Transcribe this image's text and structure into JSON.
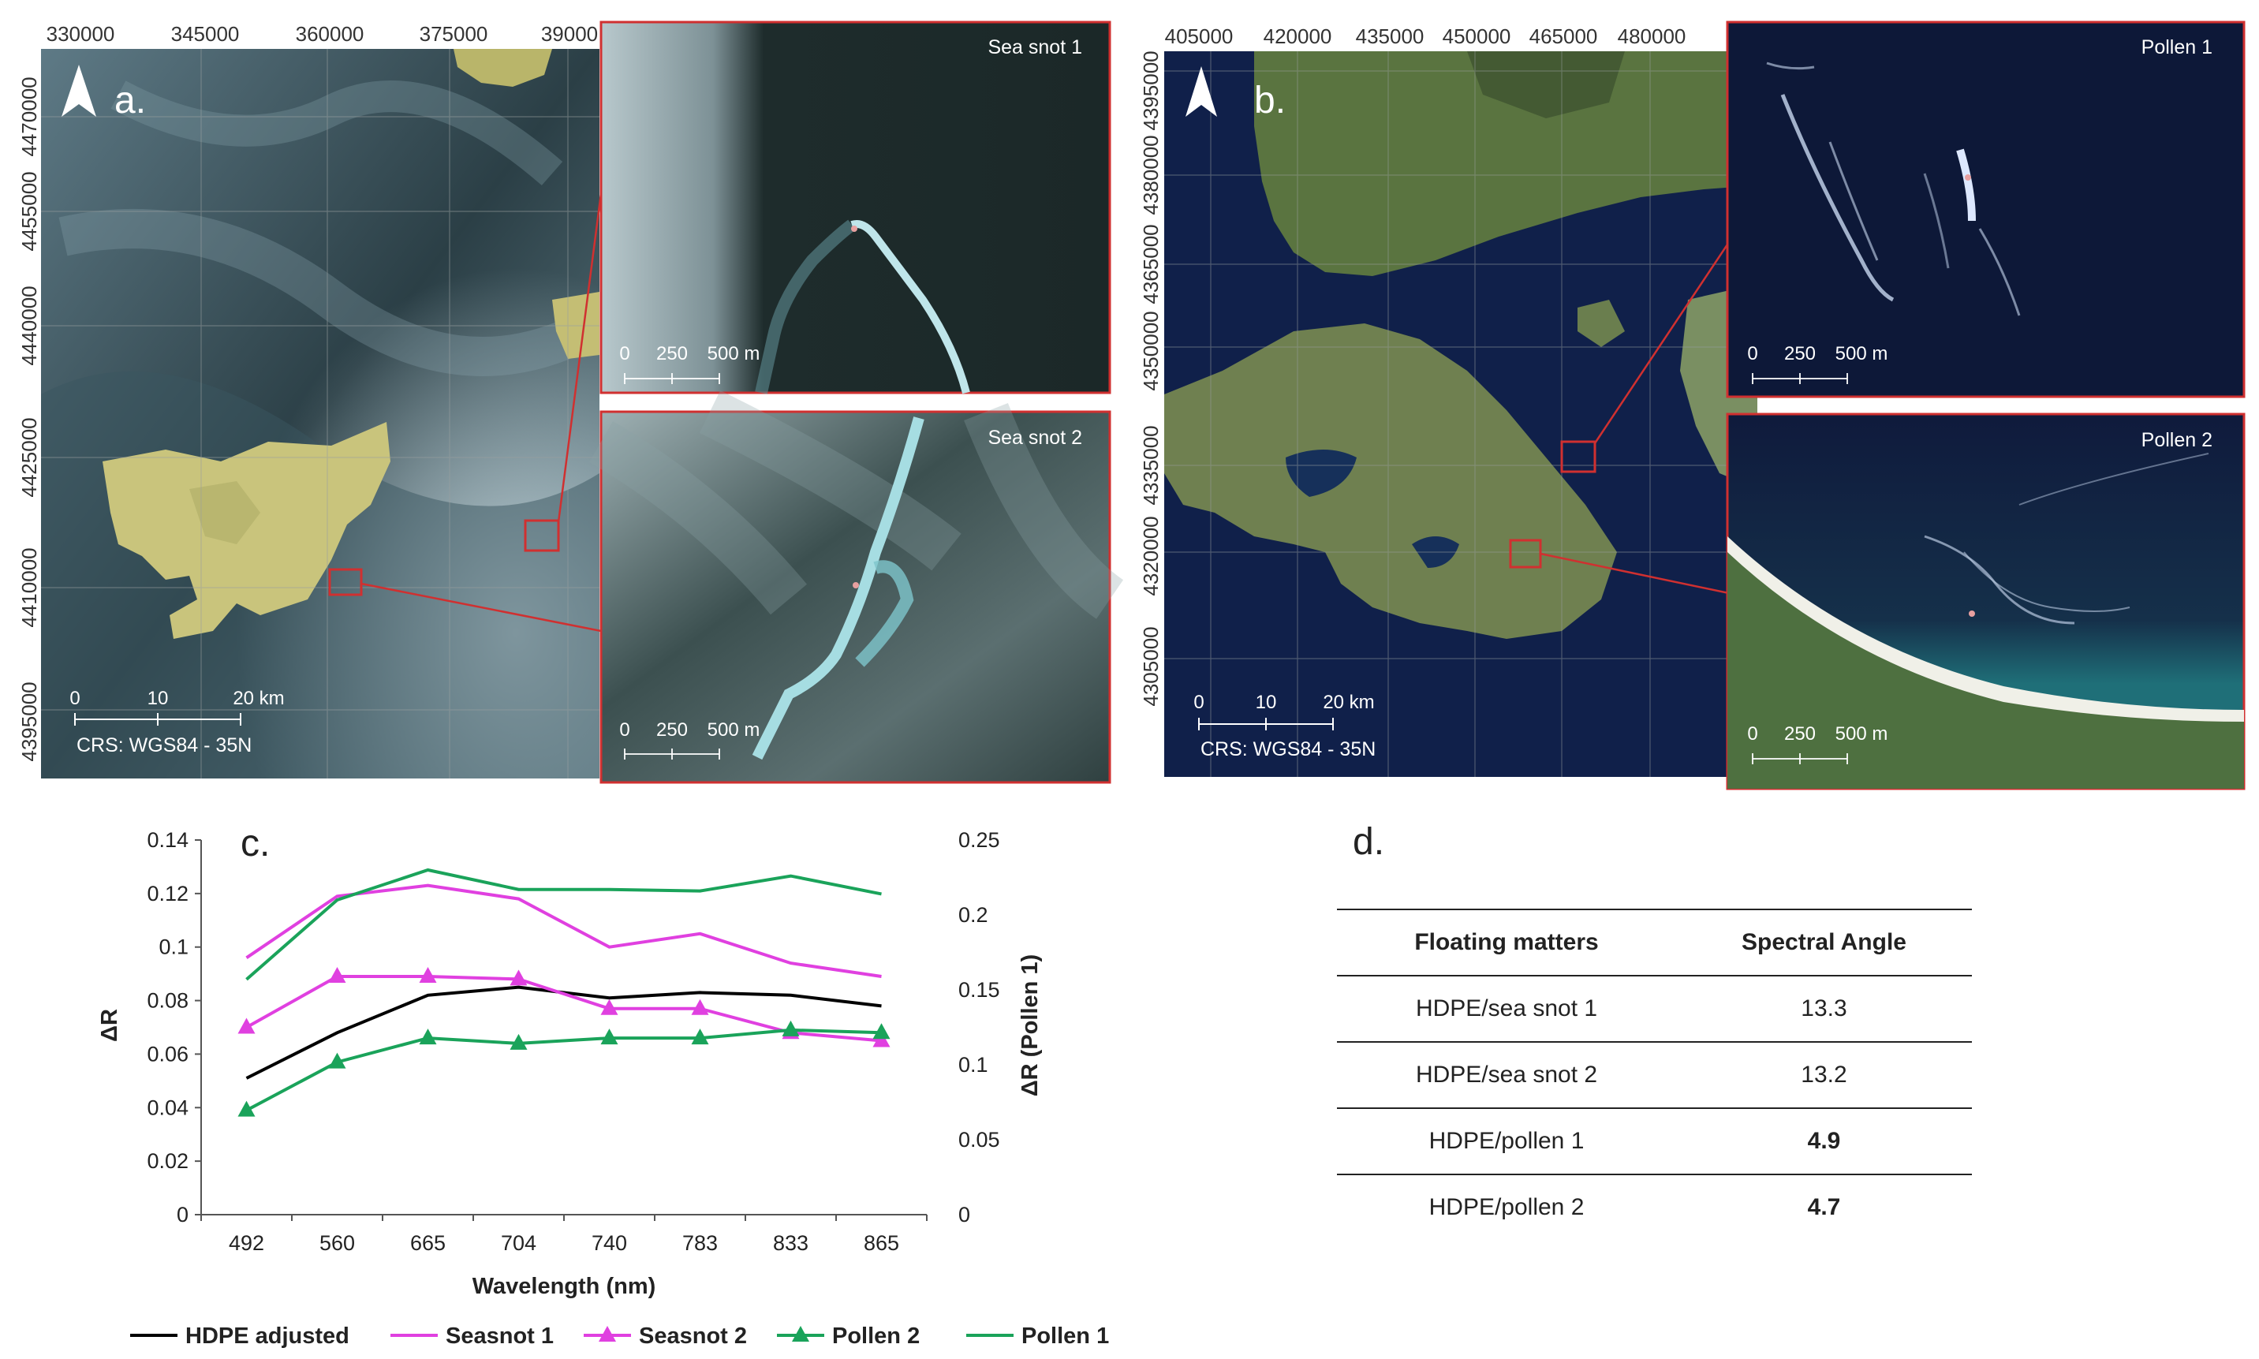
{
  "panel_a": {
    "letter": "a.",
    "x_ticks": [
      "330000",
      "345000",
      "360000",
      "375000",
      "39000"
    ],
    "y_ticks": [
      "4470000",
      "4455000",
      "4440000",
      "4425000",
      "4410000",
      "4395000"
    ],
    "scale_labels": [
      "0",
      "10",
      "20 km"
    ],
    "crs": "CRS: WGS84 - 35N",
    "insets": [
      {
        "title": "Sea snot 1",
        "scale_labels": [
          "0",
          "250",
          "500 m"
        ]
      },
      {
        "title": "Sea snot 2",
        "scale_labels": [
          "0",
          "250",
          "500 m"
        ]
      }
    ]
  },
  "panel_b": {
    "letter": "b.",
    "x_ticks": [
      "405000",
      "420000",
      "435000",
      "450000",
      "465000",
      "480000"
    ],
    "y_ticks": [
      "4395000",
      "4380000",
      "4365000",
      "4350000",
      "4335000",
      "4320000",
      "4305000"
    ],
    "scale_labels": [
      "0",
      "10",
      "20 km"
    ],
    "crs": "CRS: WGS84 - 35N",
    "insets": [
      {
        "title": "Pollen 1",
        "scale_labels": [
          "0",
          "250",
          "500 m"
        ]
      },
      {
        "title": "Pollen 2",
        "scale_labels": [
          "0",
          "250",
          "500 m"
        ]
      }
    ]
  },
  "panel_c": {
    "letter": "c.",
    "chart_data": {
      "type": "line",
      "x": [
        "492",
        "560",
        "665",
        "704",
        "740",
        "783",
        "833",
        "865"
      ],
      "xlabel": "Wavelength (nm)",
      "ylabel": "ΔR",
      "ylabel_right": "ΔR (Pollen 1)",
      "ylim": [
        0,
        0.14
      ],
      "y_ticks": [
        "0",
        "0.02",
        "0.04",
        "0.06",
        "0.08",
        "0.1",
        "0.12",
        "0.14"
      ],
      "ylim_right": [
        0,
        0.25
      ],
      "y_ticks_right": [
        "0",
        "0.05",
        "0.1",
        "0.15",
        "0.2",
        "0.25"
      ],
      "legend_placement": "bottom",
      "series": [
        {
          "name": "HDPE adjusted",
          "axis": "left",
          "color": "#000000",
          "marker": "none",
          "values": [
            0.051,
            0.068,
            0.082,
            0.085,
            0.081,
            0.083,
            0.082,
            0.078
          ]
        },
        {
          "name": "Seasnot 1",
          "axis": "left",
          "color": "#e040e0",
          "marker": "none",
          "values": [
            0.096,
            0.119,
            0.123,
            0.118,
            0.1,
            0.105,
            0.094,
            0.089
          ]
        },
        {
          "name": "Seasnot 2",
          "axis": "left",
          "color": "#e040e0",
          "marker": "triangle",
          "values": [
            0.07,
            0.089,
            0.089,
            0.088,
            0.077,
            0.077,
            0.068,
            0.065
          ]
        },
        {
          "name": "Pollen 2",
          "axis": "left",
          "color": "#1aa35a",
          "marker": "triangle",
          "values": [
            0.039,
            0.057,
            0.066,
            0.064,
            0.066,
            0.066,
            0.069,
            0.068
          ]
        },
        {
          "name": "Pollen 1",
          "axis": "right",
          "color": "#1aa35a",
          "marker": "none",
          "values": [
            0.157,
            0.21,
            0.23,
            0.217,
            0.217,
            0.216,
            0.226,
            0.214
          ]
        }
      ]
    }
  },
  "panel_d": {
    "letter": "d.",
    "headers": [
      "Floating matters",
      "Spectral Angle"
    ],
    "rows": [
      {
        "matter": "HDPE/sea snot 1",
        "angle": "13.3",
        "bold": false
      },
      {
        "matter": "HDPE/sea snot 2",
        "angle": "13.2",
        "bold": false
      },
      {
        "matter": "HDPE/pollen 1",
        "angle": "4.9",
        "bold": true
      },
      {
        "matter": "HDPE/pollen 2",
        "angle": "4.7",
        "bold": true
      }
    ]
  },
  "colors": {
    "sea_a": "#1a2a2a",
    "sea_b": "#10204a",
    "land_a": "#c8c478",
    "land_b": "#4e6a3a",
    "inset_border": "#d03030",
    "grid": "#9aa0a0"
  }
}
